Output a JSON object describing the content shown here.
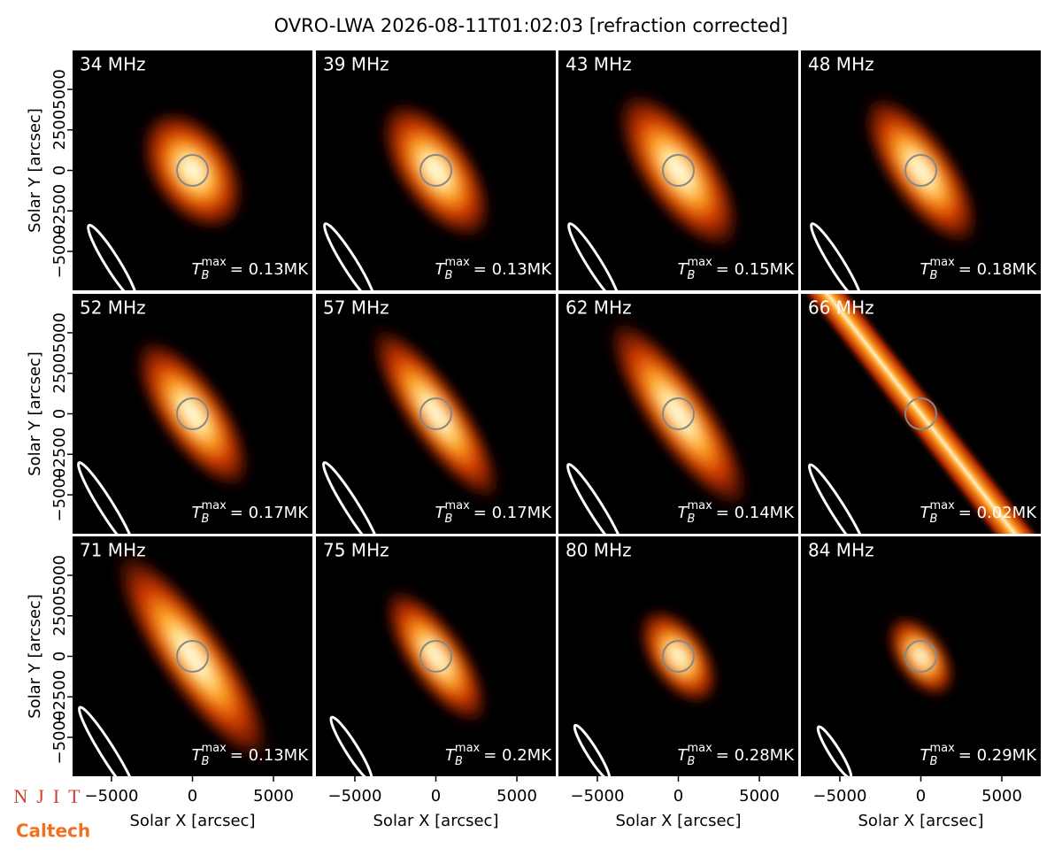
{
  "title": "OVRO-LWA 2026-08-11T01:02:03 [refraction corrected]",
  "x_label": "Solar X [arcsec]",
  "y_label": "Solar Y [arcsec]",
  "xlim": [
    -7400,
    7400
  ],
  "ylim": [
    -7400,
    7400
  ],
  "xticks": [
    {
      "value": -5000,
      "label": "−5000"
    },
    0,
    5000
  ],
  "yticks": [
    {
      "value": -5000,
      "label": "−5000"
    },
    {
      "value": -2500,
      "label": "−2500"
    },
    0,
    2500,
    5000
  ],
  "tb_label": {
    "symbol": "T",
    "sub": "B",
    "sup": "max"
  },
  "panels": [
    {
      "freq": "34 MHz",
      "tb_max": "= 0.13MK"
    },
    {
      "freq": "39 MHz",
      "tb_max": "= 0.13MK"
    },
    {
      "freq": "43 MHz",
      "tb_max": "= 0.15MK"
    },
    {
      "freq": "48 MHz",
      "tb_max": "= 0.18MK"
    },
    {
      "freq": "52 MHz",
      "tb_max": "= 0.17MK"
    },
    {
      "freq": "57 MHz",
      "tb_max": "= 0.17MK"
    },
    {
      "freq": "62 MHz",
      "tb_max": "= 0.14MK"
    },
    {
      "freq": "66 MHz",
      "tb_max": "= 0.02MK"
    },
    {
      "freq": "71 MHz",
      "tb_max": "= 0.13MK"
    },
    {
      "freq": "75 MHz",
      "tb_max": "= 0.2MK"
    },
    {
      "freq": "80 MHz",
      "tb_max": "= 0.28MK"
    },
    {
      "freq": "84 MHz",
      "tb_max": "= 0.29MK"
    }
  ],
  "logos": {
    "njit": "NJIT",
    "caltech": "Caltech"
  }
}
